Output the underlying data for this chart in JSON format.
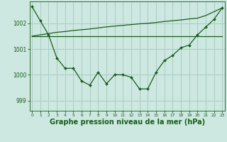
{
  "background_color": "#cce8e0",
  "grid_color": "#aaccc4",
  "line_color": "#1a5c1a",
  "xlabel": "Graphe pression niveau de la mer (hPa)",
  "xlabel_fontsize": 7,
  "xticks": [
    0,
    1,
    2,
    3,
    4,
    5,
    6,
    7,
    8,
    9,
    10,
    11,
    12,
    13,
    14,
    15,
    16,
    17,
    18,
    19,
    20,
    21,
    22,
    23
  ],
  "yticks": [
    999,
    1000,
    1001,
    1002
  ],
  "ylim": [
    998.6,
    1002.85
  ],
  "xlim": [
    -0.3,
    23.3
  ],
  "series1_y": [
    1002.65,
    1002.1,
    1001.55,
    1000.65,
    1000.25,
    1000.25,
    999.75,
    999.6,
    1000.1,
    999.65,
    1000.0,
    1000.0,
    999.9,
    999.45,
    999.45,
    1000.1,
    1000.55,
    1000.75,
    1001.05,
    1001.15,
    1001.55,
    1001.85,
    1002.15,
    1002.6
  ],
  "series2_y": [
    1001.5,
    1001.5,
    1001.5,
    1001.5,
    1001.5,
    1001.5,
    1001.5,
    1001.5,
    1001.5,
    1001.5,
    1001.5,
    1001.5,
    1001.5,
    1001.5,
    1001.5,
    1001.5,
    1001.5,
    1001.5,
    1001.5,
    1001.5,
    1001.5,
    1001.5,
    1001.5,
    1001.5
  ],
  "series3_y": [
    1001.5,
    1001.55,
    1001.6,
    1001.65,
    1001.68,
    1001.72,
    1001.75,
    1001.78,
    1001.82,
    1001.86,
    1001.89,
    1001.92,
    1001.95,
    1001.98,
    1002.0,
    1002.03,
    1002.07,
    1002.1,
    1002.13,
    1002.17,
    1002.2,
    1002.3,
    1002.45,
    1002.6
  ]
}
